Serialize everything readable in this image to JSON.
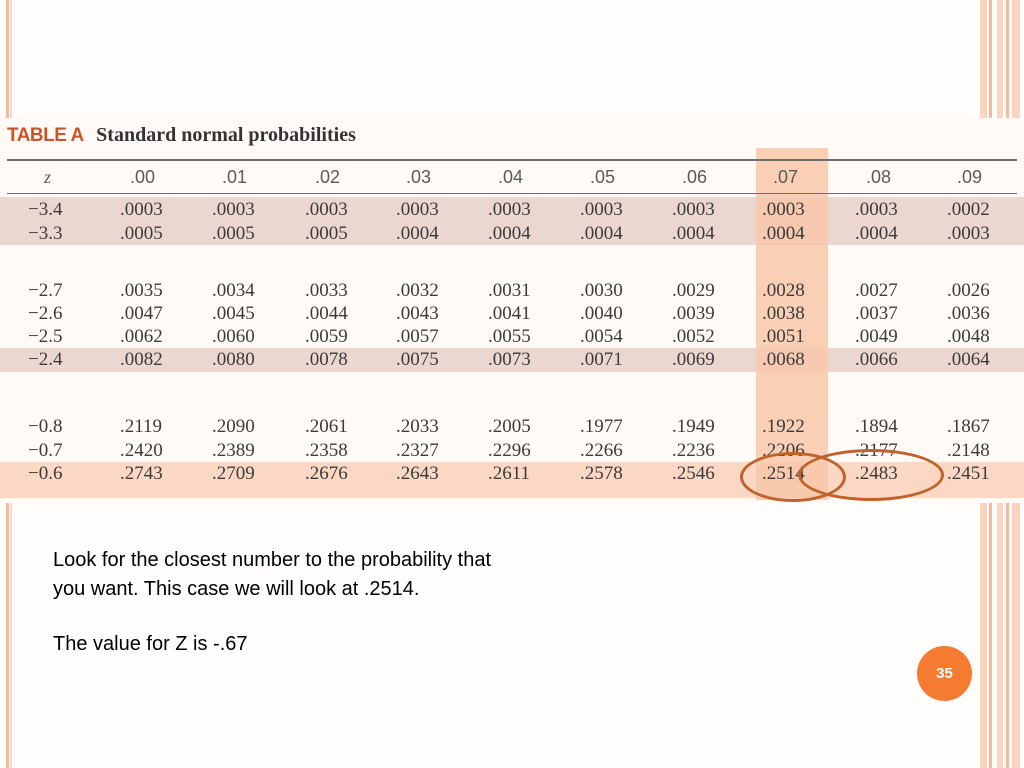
{
  "table": {
    "tag": "TABLE A",
    "caption": "Standard normal probabilities",
    "header": [
      "z",
      ".00",
      ".01",
      ".02",
      ".03",
      ".04",
      ".05",
      ".06",
      ".07",
      ".08",
      ".09"
    ],
    "groups": [
      [
        [
          "−3.4",
          ".0003",
          ".0003",
          ".0003",
          ".0003",
          ".0003",
          ".0003",
          ".0003",
          ".0003",
          ".0003",
          ".0002"
        ],
        [
          "−3.3",
          ".0005",
          ".0005",
          ".0005",
          ".0004",
          ".0004",
          ".0004",
          ".0004",
          ".0004",
          ".0004",
          ".0003"
        ]
      ],
      [
        [
          "−2.7",
          ".0035",
          ".0034",
          ".0033",
          ".0032",
          ".0031",
          ".0030",
          ".0029",
          ".0028",
          ".0027",
          ".0026"
        ],
        [
          "−2.6",
          ".0047",
          ".0045",
          ".0044",
          ".0043",
          ".0041",
          ".0040",
          ".0039",
          ".0038",
          ".0037",
          ".0036"
        ],
        [
          "−2.5",
          ".0062",
          ".0060",
          ".0059",
          ".0057",
          ".0055",
          ".0054",
          ".0052",
          ".0051",
          ".0049",
          ".0048"
        ],
        [
          "−2.4",
          ".0082",
          ".0080",
          ".0078",
          ".0075",
          ".0073",
          ".0071",
          ".0069",
          ".0068",
          ".0066",
          ".0064"
        ]
      ],
      [
        [
          "−0.8",
          ".2119",
          ".2090",
          ".2061",
          ".2033",
          ".2005",
          ".1977",
          ".1949",
          ".1922",
          ".1894",
          ".1867"
        ],
        [
          "−0.7",
          ".2420",
          ".2389",
          ".2358",
          ".2327",
          ".2296",
          ".2266",
          ".2236",
          ".2206",
          ".2177",
          ".2148"
        ],
        [
          "−0.6",
          ".2743",
          ".2709",
          ".2676",
          ".2643",
          ".2611",
          ".2578",
          ".2546",
          ".2514",
          ".2483",
          ".2451"
        ]
      ]
    ]
  },
  "text": {
    "paragraph1_line1": "Look for the closest number to the probability that",
    "paragraph1_line2": "you want.  This case we will look at .2514.",
    "paragraph2": "The value for Z is -.67"
  },
  "slide_number": "35",
  "colors": {
    "accent": "#f47b2f",
    "highlight_column": "#f8c7aa",
    "highlight_row": "#fbd8c4",
    "oval": "#c0622a"
  }
}
